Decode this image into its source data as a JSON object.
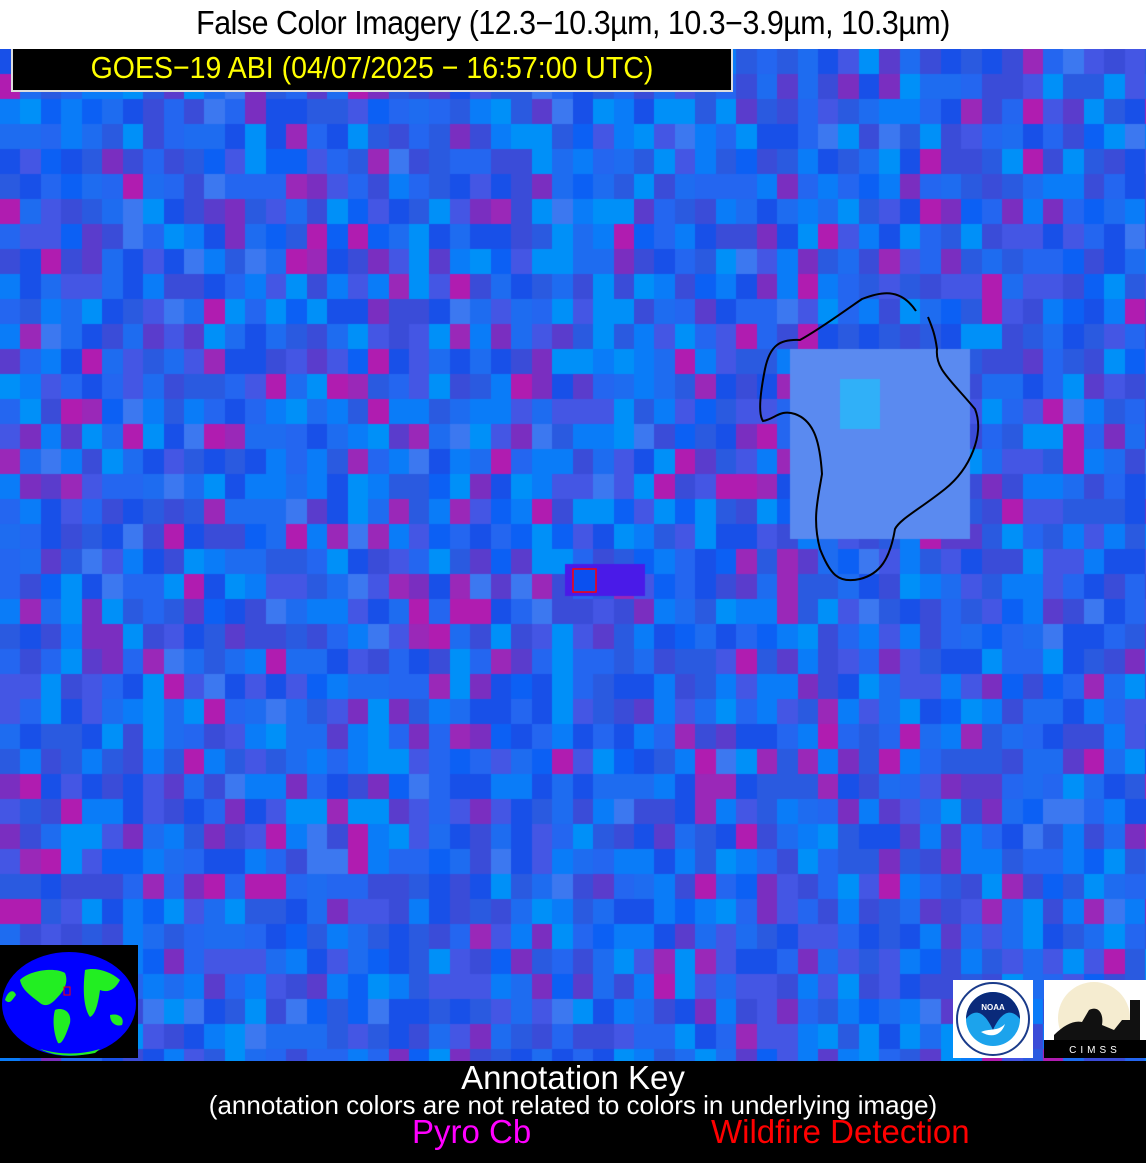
{
  "title": "False Color Imagery (12.3−10.3µm, 10.3−3.9µm, 10.3µm)",
  "subtitle": "GOES−19 ABI (04/07/2025 − 16:57:00 UTC)",
  "logos": {
    "noaa": "NOAA",
    "cimss": "CIMSS"
  },
  "annotation_key": {
    "title": "Annotation Key",
    "note": "(annotation colors are not related to colors in underlying image)",
    "items": [
      {
        "label": "Pyro Cb",
        "color": "#ff00ff"
      },
      {
        "label": "Wildfire Detection",
        "color": "#ff0000"
      }
    ]
  },
  "colors": {
    "subtitle_text": "#ffff00",
    "contour": "#000000",
    "fire_box": "#ff0000",
    "globe_land": "#22ee22",
    "globe_ocean": "#0000ff"
  }
}
